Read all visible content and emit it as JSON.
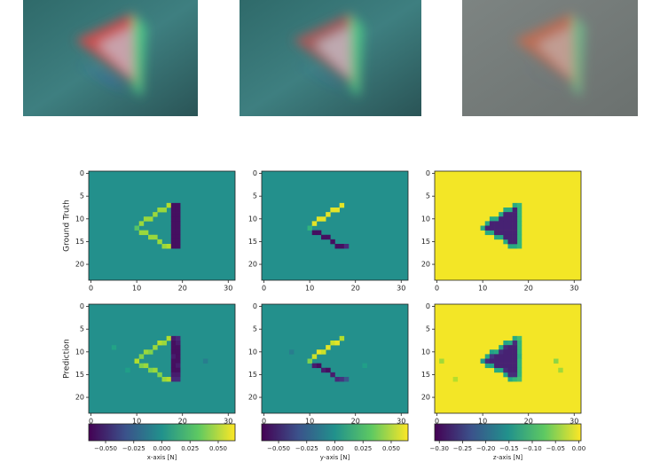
{
  "chart_data": [
    {
      "type": "heatmap",
      "row_label": "Ground Truth",
      "xlim": [
        -0.5,
        31.5
      ],
      "ylim": [
        23.5,
        -0.5
      ],
      "xticks": [
        0,
        10,
        20,
        30
      ],
      "yticks": [
        0,
        5,
        10,
        15,
        20
      ],
      "clim": [
        -0.065,
        0.065
      ],
      "background": 0,
      "cells": [
        [
          10,
          12,
          0.03
        ],
        [
          11,
          11,
          0.045
        ],
        [
          12,
          10,
          0.045
        ],
        [
          13,
          10,
          0.045
        ],
        [
          14,
          9,
          0.045
        ],
        [
          15,
          8,
          0.045
        ],
        [
          16,
          8,
          0.045
        ],
        [
          17,
          7,
          0.05
        ],
        [
          11,
          13,
          0.045
        ],
        [
          12,
          13,
          0.045
        ],
        [
          13,
          14,
          0.045
        ],
        [
          14,
          14,
          0.045
        ],
        [
          15,
          15,
          0.045
        ],
        [
          16,
          16,
          0.045
        ],
        [
          17,
          16,
          0.05
        ],
        [
          18,
          7,
          -0.06
        ],
        [
          18,
          8,
          -0.06
        ],
        [
          18,
          9,
          -0.06
        ],
        [
          18,
          10,
          -0.06
        ],
        [
          18,
          11,
          -0.06
        ],
        [
          18,
          12,
          -0.06
        ],
        [
          18,
          13,
          -0.06
        ],
        [
          18,
          14,
          -0.06
        ],
        [
          18,
          15,
          -0.06
        ],
        [
          18,
          16,
          -0.06
        ],
        [
          19,
          7,
          -0.06
        ],
        [
          19,
          8,
          -0.06
        ],
        [
          19,
          9,
          -0.06
        ],
        [
          19,
          10,
          -0.06
        ],
        [
          19,
          11,
          -0.06
        ],
        [
          19,
          12,
          -0.06
        ],
        [
          19,
          13,
          -0.06
        ],
        [
          19,
          14,
          -0.06
        ],
        [
          19,
          15,
          -0.06
        ],
        [
          19,
          16,
          -0.06
        ]
      ]
    },
    {
      "type": "heatmap",
      "xlim": [
        -0.5,
        31.5
      ],
      "ylim": [
        23.5,
        -0.5
      ],
      "xticks": [
        0,
        10,
        20,
        30
      ],
      "yticks": [
        0,
        5,
        10,
        15,
        20
      ],
      "clim": [
        -0.065,
        0.065
      ],
      "background": 0,
      "cells": [
        [
          10,
          12,
          0.02
        ],
        [
          11,
          11,
          0.06
        ],
        [
          12,
          10,
          0.06
        ],
        [
          13,
          10,
          0.06
        ],
        [
          14,
          9,
          0.06
        ],
        [
          15,
          8,
          0.06
        ],
        [
          16,
          8,
          0.06
        ],
        [
          17,
          7,
          0.06
        ],
        [
          11,
          13,
          -0.06
        ],
        [
          12,
          13,
          -0.06
        ],
        [
          13,
          14,
          -0.06
        ],
        [
          14,
          14,
          -0.06
        ],
        [
          15,
          15,
          -0.06
        ],
        [
          16,
          16,
          -0.06
        ],
        [
          17,
          16,
          -0.06
        ],
        [
          18,
          16,
          -0.05
        ]
      ]
    },
    {
      "type": "heatmap",
      "xlim": [
        -0.5,
        31.5
      ],
      "ylim": [
        23.5,
        -0.5
      ],
      "xticks": [
        0,
        10,
        20,
        30
      ],
      "yticks": [
        0,
        5,
        10,
        15,
        20
      ],
      "clim": [
        -0.31,
        0.005
      ],
      "background": 0,
      "cells": [
        [
          10,
          12,
          -0.12
        ],
        [
          11,
          11,
          -0.12
        ],
        [
          12,
          10,
          -0.12
        ],
        [
          13,
          10,
          -0.12
        ],
        [
          14,
          9,
          -0.12
        ],
        [
          15,
          8,
          -0.12
        ],
        [
          16,
          8,
          -0.12
        ],
        [
          17,
          7,
          -0.12
        ],
        [
          11,
          13,
          -0.12
        ],
        [
          12,
          13,
          -0.12
        ],
        [
          13,
          14,
          -0.12
        ],
        [
          14,
          14,
          -0.12
        ],
        [
          15,
          15,
          -0.12
        ],
        [
          16,
          16,
          -0.12
        ],
        [
          17,
          16,
          -0.12
        ],
        [
          18,
          7,
          -0.1
        ],
        [
          18,
          8,
          -0.1
        ],
        [
          18,
          9,
          -0.1
        ],
        [
          18,
          10,
          -0.1
        ],
        [
          18,
          11,
          -0.1
        ],
        [
          18,
          12,
          -0.1
        ],
        [
          18,
          13,
          -0.1
        ],
        [
          18,
          14,
          -0.1
        ],
        [
          18,
          15,
          -0.1
        ],
        [
          18,
          16,
          -0.1
        ],
        [
          17,
          8,
          -0.28
        ],
        [
          15,
          9,
          -0.28
        ],
        [
          16,
          9,
          -0.28
        ],
        [
          17,
          9,
          -0.28
        ],
        [
          14,
          10,
          -0.28
        ],
        [
          15,
          10,
          -0.28
        ],
        [
          16,
          10,
          -0.28
        ],
        [
          17,
          10,
          -0.28
        ],
        [
          12,
          11,
          -0.28
        ],
        [
          13,
          11,
          -0.28
        ],
        [
          14,
          11,
          -0.28
        ],
        [
          15,
          11,
          -0.28
        ],
        [
          16,
          11,
          -0.28
        ],
        [
          17,
          11,
          -0.28
        ],
        [
          11,
          12,
          -0.28
        ],
        [
          12,
          12,
          -0.28
        ],
        [
          13,
          12,
          -0.28
        ],
        [
          14,
          12,
          -0.28
        ],
        [
          15,
          12,
          -0.28
        ],
        [
          16,
          12,
          -0.28
        ],
        [
          17,
          12,
          -0.28
        ],
        [
          13,
          13,
          -0.28
        ],
        [
          14,
          13,
          -0.28
        ],
        [
          15,
          13,
          -0.28
        ],
        [
          16,
          13,
          -0.28
        ],
        [
          17,
          13,
          -0.28
        ],
        [
          15,
          14,
          -0.28
        ],
        [
          16,
          14,
          -0.28
        ],
        [
          17,
          14,
          -0.28
        ],
        [
          16,
          15,
          -0.28
        ],
        [
          17,
          15,
          -0.28
        ]
      ]
    },
    {
      "type": "heatmap",
      "row_label": "Prediction",
      "xlim": [
        -0.5,
        31.5
      ],
      "ylim": [
        23.5,
        -0.5
      ],
      "xticks": [
        0,
        10,
        20,
        30
      ],
      "yticks": [
        0,
        5,
        10,
        15,
        20
      ],
      "clim": [
        -0.065,
        0.065
      ],
      "background": 0,
      "cells": [
        [
          5,
          9,
          0.01
        ],
        [
          25,
          12,
          -0.01
        ],
        [
          8,
          14,
          0.008
        ],
        [
          10,
          12,
          0.05
        ],
        [
          11,
          11,
          0.04
        ],
        [
          12,
          10,
          0.045
        ],
        [
          13,
          10,
          0.04
        ],
        [
          14,
          9,
          0.045
        ],
        [
          15,
          8,
          0.05
        ],
        [
          16,
          8,
          0.045
        ],
        [
          17,
          7,
          0.05
        ],
        [
          11,
          13,
          0.04
        ],
        [
          12,
          13,
          0.045
        ],
        [
          13,
          14,
          0.04
        ],
        [
          14,
          14,
          0.045
        ],
        [
          15,
          15,
          0.04
        ],
        [
          16,
          16,
          0.045
        ],
        [
          17,
          16,
          0.05
        ],
        [
          18,
          7,
          -0.055
        ],
        [
          18,
          8,
          -0.06
        ],
        [
          18,
          9,
          -0.06
        ],
        [
          18,
          10,
          -0.06
        ],
        [
          18,
          11,
          -0.055
        ],
        [
          18,
          12,
          -0.06
        ],
        [
          18,
          13,
          -0.06
        ],
        [
          18,
          14,
          -0.06
        ],
        [
          18,
          15,
          -0.055
        ],
        [
          18,
          16,
          -0.05
        ],
        [
          19,
          7,
          -0.05
        ],
        [
          19,
          8,
          -0.055
        ],
        [
          19,
          9,
          -0.06
        ],
        [
          19,
          10,
          -0.06
        ],
        [
          19,
          11,
          -0.06
        ],
        [
          19,
          12,
          -0.06
        ],
        [
          19,
          13,
          -0.055
        ],
        [
          19,
          14,
          -0.06
        ],
        [
          19,
          15,
          -0.055
        ],
        [
          19,
          16,
          -0.05
        ]
      ]
    },
    {
      "type": "heatmap",
      "xlim": [
        -0.5,
        31.5
      ],
      "ylim": [
        23.5,
        -0.5
      ],
      "xticks": [
        0,
        10,
        20,
        30
      ],
      "yticks": [
        0,
        5,
        10,
        15,
        20
      ],
      "clim": [
        -0.065,
        0.065
      ],
      "background": 0,
      "cells": [
        [
          6,
          10,
          -0.01
        ],
        [
          22,
          13,
          0.008
        ],
        [
          10,
          12,
          0.04
        ],
        [
          11,
          11,
          0.055
        ],
        [
          12,
          10,
          0.06
        ],
        [
          13,
          10,
          0.055
        ],
        [
          14,
          9,
          0.06
        ],
        [
          15,
          8,
          0.055
        ],
        [
          16,
          8,
          0.06
        ],
        [
          17,
          7,
          0.05
        ],
        [
          11,
          13,
          -0.055
        ],
        [
          12,
          13,
          -0.06
        ],
        [
          13,
          14,
          -0.055
        ],
        [
          14,
          14,
          -0.06
        ],
        [
          15,
          15,
          -0.055
        ],
        [
          16,
          16,
          -0.05
        ],
        [
          17,
          16,
          -0.045
        ],
        [
          18,
          16,
          -0.03
        ]
      ]
    },
    {
      "type": "heatmap",
      "xlim": [
        -0.5,
        31.5
      ],
      "ylim": [
        23.5,
        -0.5
      ],
      "xticks": [
        0,
        10,
        20,
        30
      ],
      "yticks": [
        0,
        5,
        10,
        15,
        20
      ],
      "clim": [
        -0.31,
        0.005
      ],
      "background": 0,
      "cells": [
        [
          1,
          12,
          -0.04
        ],
        [
          26,
          12,
          -0.05
        ],
        [
          27,
          14,
          -0.04
        ],
        [
          4,
          16,
          -0.03
        ],
        [
          10,
          12,
          -0.14
        ],
        [
          11,
          11,
          -0.12
        ],
        [
          12,
          10,
          -0.13
        ],
        [
          13,
          10,
          -0.12
        ],
        [
          14,
          9,
          -0.12
        ],
        [
          15,
          8,
          -0.13
        ],
        [
          16,
          8,
          -0.12
        ],
        [
          17,
          7,
          -0.12
        ],
        [
          11,
          13,
          -0.12
        ],
        [
          12,
          13,
          -0.13
        ],
        [
          13,
          14,
          -0.12
        ],
        [
          14,
          14,
          -0.12
        ],
        [
          15,
          15,
          -0.13
        ],
        [
          16,
          16,
          -0.12
        ],
        [
          17,
          16,
          -0.1
        ],
        [
          18,
          7,
          -0.09
        ],
        [
          18,
          8,
          -0.1
        ],
        [
          18,
          9,
          -0.1
        ],
        [
          18,
          10,
          -0.1
        ],
        [
          18,
          11,
          -0.11
        ],
        [
          18,
          12,
          -0.1
        ],
        [
          18,
          13,
          -0.1
        ],
        [
          18,
          14,
          -0.1
        ],
        [
          18,
          15,
          -0.1
        ],
        [
          18,
          16,
          -0.09
        ],
        [
          17,
          8,
          -0.27
        ],
        [
          15,
          9,
          -0.27
        ],
        [
          16,
          9,
          -0.28
        ],
        [
          17,
          9,
          -0.28
        ],
        [
          14,
          10,
          -0.27
        ],
        [
          15,
          10,
          -0.28
        ],
        [
          16,
          10,
          -0.28
        ],
        [
          17,
          10,
          -0.28
        ],
        [
          12,
          11,
          -0.26
        ],
        [
          13,
          11,
          -0.28
        ],
        [
          14,
          11,
          -0.28
        ],
        [
          15,
          11,
          -0.28
        ],
        [
          16,
          11,
          -0.28
        ],
        [
          17,
          11,
          -0.28
        ],
        [
          11,
          12,
          -0.27
        ],
        [
          12,
          12,
          -0.28
        ],
        [
          13,
          12,
          -0.28
        ],
        [
          14,
          12,
          -0.28
        ],
        [
          15,
          12,
          -0.28
        ],
        [
          16,
          12,
          -0.28
        ],
        [
          17,
          12,
          -0.28
        ],
        [
          13,
          13,
          -0.28
        ],
        [
          14,
          13,
          -0.28
        ],
        [
          15,
          13,
          -0.28
        ],
        [
          16,
          13,
          -0.28
        ],
        [
          17,
          13,
          -0.28
        ],
        [
          15,
          14,
          -0.27
        ],
        [
          16,
          14,
          -0.28
        ],
        [
          17,
          14,
          -0.28
        ],
        [
          16,
          15,
          -0.27
        ],
        [
          17,
          15,
          -0.27
        ]
      ]
    }
  ],
  "colorbars": [
    {
      "label": "x-axis [N]",
      "clim": [
        -0.065,
        0.065
      ],
      "ticks": [
        {
          "value": -0.05,
          "label": "−0.050"
        },
        {
          "value": -0.025,
          "label": "−0.025"
        },
        {
          "value": 0,
          "label": "0.000"
        },
        {
          "value": 0.025,
          "label": "0.025"
        },
        {
          "value": 0.05,
          "label": "0.050"
        }
      ]
    },
    {
      "label": "y-axis [N]",
      "clim": [
        -0.065,
        0.065
      ],
      "ticks": [
        {
          "value": -0.05,
          "label": "−0.050"
        },
        {
          "value": -0.025,
          "label": "−0.025"
        },
        {
          "value": 0,
          "label": "0.000"
        },
        {
          "value": 0.025,
          "label": "0.025"
        },
        {
          "value": 0.05,
          "label": "0.050"
        }
      ]
    },
    {
      "label": "z-axis [N]",
      "clim": [
        -0.31,
        0.005
      ],
      "ticks": [
        {
          "value": -0.3,
          "label": "−0.30"
        },
        {
          "value": -0.25,
          "label": "−0.25"
        },
        {
          "value": -0.2,
          "label": "−0.20"
        },
        {
          "value": -0.15,
          "label": "−0.15"
        },
        {
          "value": -0.1,
          "label": "−0.10"
        },
        {
          "value": -0.05,
          "label": "−0.05"
        },
        {
          "value": 0,
          "label": "0.00"
        }
      ]
    }
  ]
}
